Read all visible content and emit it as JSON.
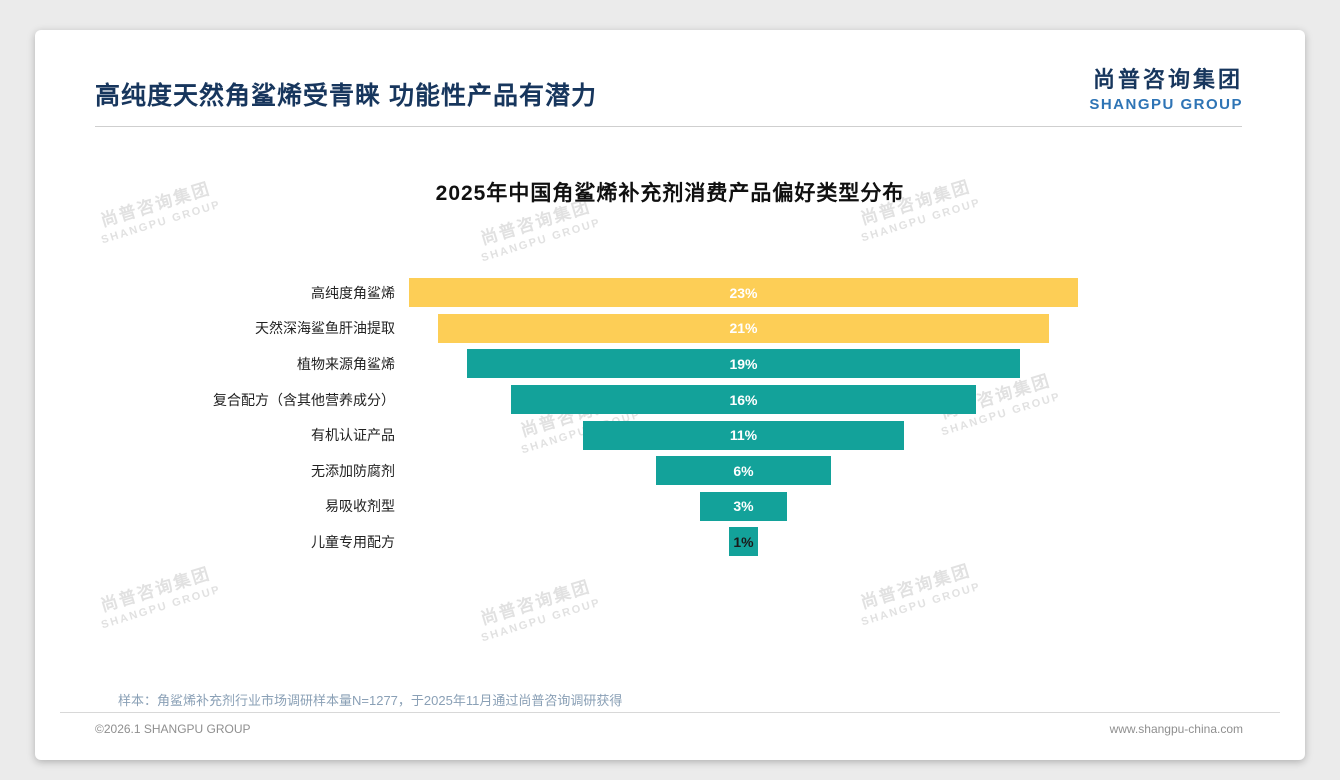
{
  "page": {
    "title": "高纯度天然角鲨烯受青睐 功能性产品有潜力",
    "logo": {
      "cn": "尚普咨询集团",
      "en": "SHANGPU GROUP"
    },
    "note": "样本：角鲨烯补充剂行业市场调研样本量N=1277，于2025年11月通过尚普咨询调研获得",
    "footer": {
      "left": "©2026.1 SHANGPU GROUP",
      "right": "www.shangpu-china.com"
    },
    "watermark": {
      "cn": "尚普咨询集团",
      "en": "SHANGPU GROUP"
    }
  },
  "colors": {
    "accent_yellow": "#FDCE56",
    "accent_teal": "#13A29A",
    "title_navy": "#17365D",
    "logo_blue": "#2E74B5"
  },
  "chart_data": {
    "type": "bar",
    "orientation": "horizontal-centered-funnel",
    "title": "2025年中国角鲨烯补充剂消费产品偏好类型分布",
    "categories": [
      "高纯度角鲨烯",
      "天然深海鲨鱼肝油提取",
      "植物来源角鲨烯",
      "复合配方（含其他营养成分）",
      "有机认证产品",
      "无添加防腐剂",
      "易吸收剂型",
      "儿童专用配方"
    ],
    "values": [
      23,
      21,
      19,
      16,
      11,
      6,
      3,
      1
    ],
    "labels": [
      "23%",
      "21%",
      "19%",
      "16%",
      "11%",
      "6%",
      "3%",
      "1%"
    ],
    "bar_colors": [
      "#FDCE56",
      "#FDCE56",
      "#13A29A",
      "#13A29A",
      "#13A29A",
      "#13A29A",
      "#13A29A",
      "#13A29A"
    ],
    "label_colors": [
      "#ffffff",
      "#ffffff",
      "#ffffff",
      "#ffffff",
      "#ffffff",
      "#ffffff",
      "#ffffff",
      "#1a1a1a"
    ],
    "xlabel": "",
    "ylabel": "",
    "xlim": [
      0,
      24
    ],
    "grid": false,
    "legend": "none"
  }
}
